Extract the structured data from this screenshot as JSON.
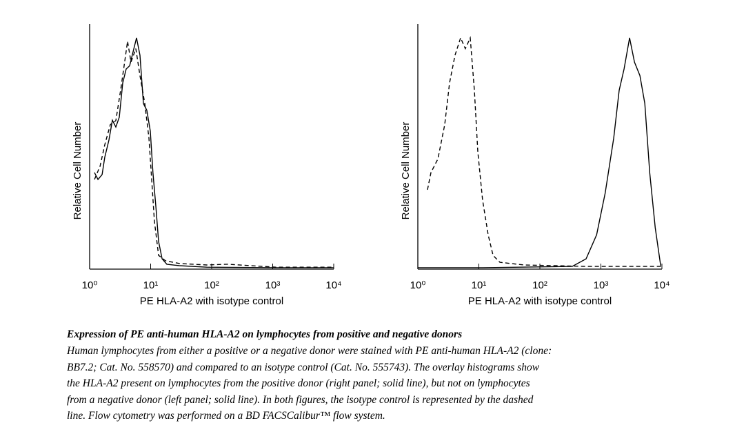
{
  "chart_data": [
    {
      "type": "line",
      "x_label": "PE HLA-A2 with isotype control",
      "y_label": "Relative Cell Number",
      "xscale": "log",
      "xlim": [
        1,
        10000
      ],
      "ylim": [
        0,
        100
      ],
      "xticks": [
        {
          "value": 1,
          "label": "10⁰"
        },
        {
          "value": 10,
          "label": "10¹"
        },
        {
          "value": 100,
          "label": "10²"
        },
        {
          "value": 1000,
          "label": "10³"
        },
        {
          "value": 10000,
          "label": "10⁴"
        }
      ],
      "series": [
        {
          "style": "solid",
          "color": "#000000",
          "x": [
            1.2,
            1.37,
            1.6,
            1.77,
            2.07,
            2.36,
            2.69,
            3.06,
            3.49,
            3.97,
            4.52,
            5.15,
            5.87,
            6.68,
            7.61,
            8.67,
            9.87,
            10.9,
            12.2,
            13.5,
            15.4,
            18.4,
            29.4,
            83,
            1120,
            10000
          ],
          "values": [
            39.4,
            36.6,
            38.6,
            45.6,
            52.7,
            60.8,
            58,
            62,
            76,
            81.7,
            83,
            88.7,
            94.4,
            87.3,
            67.6,
            64.8,
            56.3,
            39.4,
            25.4,
            11.3,
            4.2,
            2,
            1.4,
            0.8,
            0.6,
            0.6
          ]
        },
        {
          "style": "dashed",
          "color": "#000000",
          "x": [
            1.2,
            1.48,
            1.77,
            2.18,
            2.69,
            3.22,
            3.67,
            4.18,
            4.76,
            5.72,
            6.68,
            8.02,
            9.37,
            10.4,
            11.5,
            13.5,
            17.5,
            29.4,
            83,
            182,
            1120,
            10000
          ],
          "values": [
            36.6,
            42,
            50.7,
            59,
            60.6,
            73,
            83,
            93,
            84.5,
            90,
            79,
            67.6,
            53.5,
            36.6,
            19.7,
            5.6,
            3.4,
            2.3,
            1.7,
            2,
            0.8,
            0.8
          ]
        }
      ]
    },
    {
      "type": "line",
      "x_label": "PE HLA-A2 with isotype control",
      "y_label": "Relative Cell Number",
      "xscale": "log",
      "xlim": [
        1,
        10000
      ],
      "ylim": [
        0,
        100
      ],
      "xticks": [
        {
          "value": 1,
          "label": "10⁰"
        },
        {
          "value": 10,
          "label": "10¹"
        },
        {
          "value": 100,
          "label": "10²"
        },
        {
          "value": 1000,
          "label": "10³"
        },
        {
          "value": 10000,
          "label": "10⁴"
        }
      ],
      "series": [
        {
          "style": "solid",
          "color": "#000000",
          "x": [
            1,
            11.5,
            339,
            572,
            851,
            1175,
            1622,
            1995,
            2399,
            2951,
            3548,
            4365,
            5248,
            6310,
            7762,
            9550
          ],
          "values": [
            0.6,
            0.6,
            1.1,
            4.2,
            14,
            31,
            53.5,
            73,
            81.7,
            94.4,
            84.5,
            79,
            67.6,
            39.4,
            16.9,
            1.4
          ]
        },
        {
          "style": "dashed",
          "color": "#000000",
          "x": [
            1.44,
            1.64,
            2.13,
            2.76,
            3.31,
            4.07,
            5.02,
            6.0,
            7.22,
            8.45,
            9.62,
            11.5,
            14.2,
            17.1,
            22.1,
            55,
            572,
            10000
          ],
          "values": [
            32.4,
            39.4,
            45,
            59,
            76,
            87.3,
            94.4,
            90,
            94.4,
            73,
            47.9,
            28.2,
            14,
            5.6,
            2.8,
            1.7,
            1.1,
            1.1
          ]
        }
      ]
    }
  ],
  "caption": {
    "title": "Expression of PE anti-human HLA-A2 on lymphocytes from positive and negative donors",
    "lines": [
      "Human lymphocytes from either a positive or a negative donor were stained with PE anti-human HLA-A2 (clone:",
      "BB7.2; Cat. No. 558570) and compared to an isotype control (Cat. No. 555743).  The overlay histograms show",
      "the HLA-A2 present on lymphocytes from the positive donor (right panel; solid line), but not on lymphocytes",
      "from a negative donor (left panel; solid line).  In both figures, the isotype control is represented by the dashed",
      "line.  Flow cytometry was performed on a BD FACSCalibur™ flow system."
    ]
  }
}
